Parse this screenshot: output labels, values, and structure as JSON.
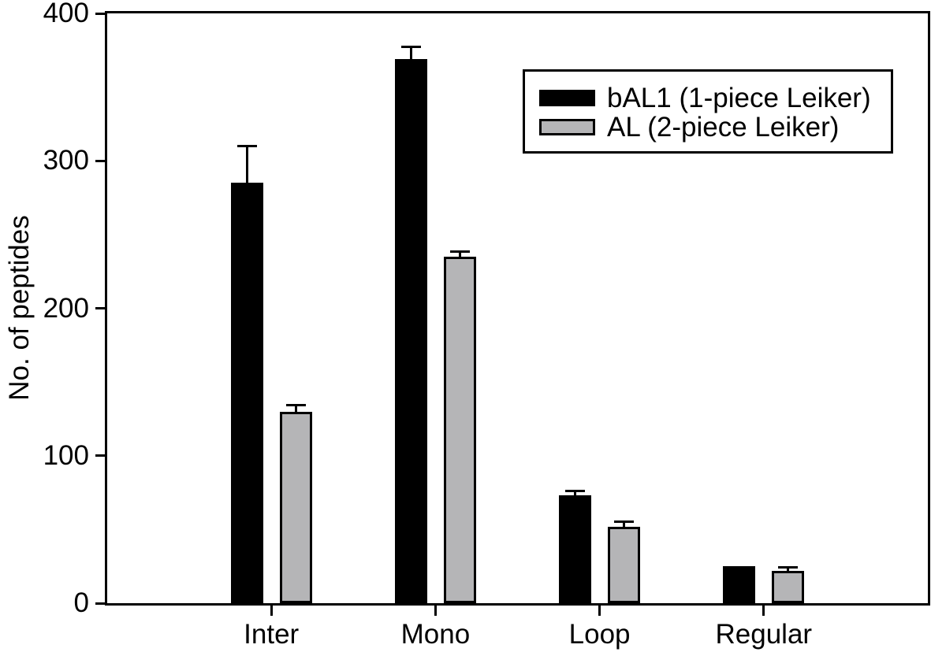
{
  "chart_data": {
    "type": "bar",
    "title": "",
    "xlabel": "",
    "ylabel": "No. of peptides",
    "ylim": [
      0,
      400
    ],
    "yticks": [
      0,
      100,
      200,
      300,
      400
    ],
    "categories": [
      "Inter",
      "Mono",
      "Loop",
      "Regular"
    ],
    "series": [
      {
        "name": "bAL1 (1-piece Leiker)",
        "color": "#000000",
        "values": [
          285,
          369,
          73,
          25
        ],
        "errors_plus": [
          26,
          9,
          4,
          0
        ]
      },
      {
        "name": "AL (2-piece Leiker)",
        "color": "#b5b5b7",
        "values": [
          130,
          235,
          52,
          22
        ],
        "errors_plus": [
          5,
          4,
          4,
          3
        ]
      }
    ],
    "error_bars": "upper-only",
    "grid": false,
    "legend_position": "top-right-inside",
    "frame": "full-box",
    "axis_color": "#000000",
    "bar_outline_color": "#000000",
    "background_color": "#ffffff"
  }
}
